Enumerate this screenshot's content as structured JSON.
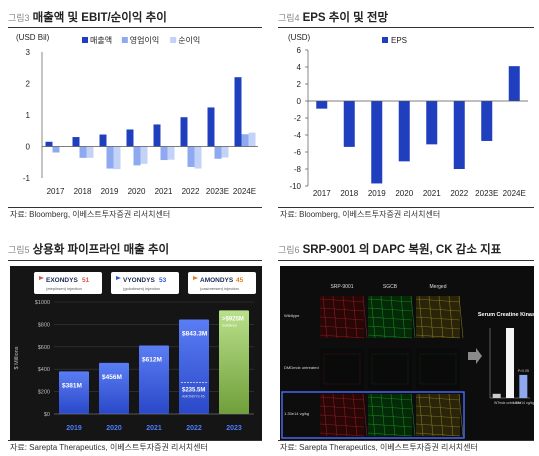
{
  "panels": {
    "p3": {
      "fig": "그림3",
      "title": "매출액 및 EBIT/순이익 추이",
      "source": "자료: Bloomberg, 이베스트투자증권 리서치센터"
    },
    "p4": {
      "fig": "그림4",
      "title": "EPS 추이 및 전망",
      "source": "자료: Bloomberg, 이베스트투자증권 리서치센터"
    },
    "p5": {
      "fig": "그림5",
      "title": "상용화 파이프라인 매출 추이",
      "source": "자료: Sarepta Therapeutics, 이베스트투자증권 리서치센터"
    },
    "p6": {
      "fig": "그림6",
      "title": "SRP-9001 의 DAPC 복원, CK 감소 지표",
      "source": "자료: Sarepta Therapeutics, 이베스트투자증권 리서치센터"
    }
  },
  "chart_data": [
    {
      "type": "bar",
      "unit_label": "(USD Bil)",
      "categories": [
        "2017",
        "2018",
        "2019",
        "2020",
        "2021",
        "2022",
        "2023E",
        "2024E"
      ],
      "series": [
        {
          "name": "매출액",
          "color": "#1f3fbf",
          "values": [
            0.15,
            0.3,
            0.38,
            0.54,
            0.7,
            0.93,
            1.24,
            2.2
          ]
        },
        {
          "name": "영업이익",
          "color": "#8ea9f0",
          "values": [
            -0.19,
            -0.36,
            -0.7,
            -0.6,
            -0.43,
            -0.65,
            -0.39,
            0.39
          ]
        },
        {
          "name": "순이익",
          "color": "#c3d2f7",
          "values": [
            -0.01,
            -0.36,
            -0.72,
            -0.55,
            -0.42,
            -0.7,
            -0.35,
            0.44
          ]
        }
      ],
      "ylim": [
        -1,
        3
      ],
      "yticks": [
        -1,
        0,
        1,
        2,
        3
      ],
      "legend": "top-center"
    },
    {
      "type": "bar",
      "unit_label": "(USD)",
      "categories": [
        "2017",
        "2018",
        "2019",
        "2020",
        "2021",
        "2022",
        "2023E",
        "2024E"
      ],
      "series": [
        {
          "name": "EPS",
          "color": "#1f3fbf",
          "values": [
            -0.9,
            -5.4,
            -9.7,
            -7.1,
            -5.1,
            -8.0,
            -4.7,
            4.1
          ]
        }
      ],
      "ylim": [
        -10,
        6
      ],
      "yticks": [
        6,
        4,
        2,
        0,
        -2,
        -4,
        -6,
        -8,
        -10
      ],
      "legend": "top-left"
    },
    {
      "type": "bar",
      "ylabel": "$ Millions",
      "categories": [
        "2019",
        "2020",
        "2021",
        "2022",
        "2023"
      ],
      "values": [
        381,
        456,
        612,
        843.3,
        925
      ],
      "value_labels": [
        "$381M",
        "$456M",
        "$612M",
        "$843.3M",
        "$925M"
      ],
      "sub_labels": {
        "2022": {
          "text": "$235.5M",
          "note": "AMONDYS 45"
        },
        "2023": {
          "note": "Guidance"
        }
      },
      "ylim": [
        0,
        1000
      ],
      "yticks": [
        0,
        200,
        400,
        600,
        800,
        1000
      ],
      "products": [
        {
          "brand": "EXONDYS",
          "num": "51",
          "generic": "(eteplirsen) injection"
        },
        {
          "brand": "VYONDYS",
          "num": "53",
          "generic": "(golodirsen) injection"
        },
        {
          "brand": "AMONDYS",
          "num": "45",
          "generic": "(casimersen) injection"
        }
      ]
    },
    {
      "type": "bar",
      "title": "Serum Creatine Kinase",
      "categories": [
        "WT",
        "mdx untreated",
        "1.33e14 vg/kg"
      ],
      "values": [
        60,
        1000,
        330
      ],
      "annotation": "P<0.05",
      "ylim": [
        0,
        1000
      ]
    }
  ],
  "micro": {
    "cols": [
      "SRP-9001",
      "SGCB",
      "Merged"
    ],
    "rows": [
      "Wildtype",
      "DMDmdx untreated mice",
      "1.33e14 vg/kg"
    ]
  }
}
